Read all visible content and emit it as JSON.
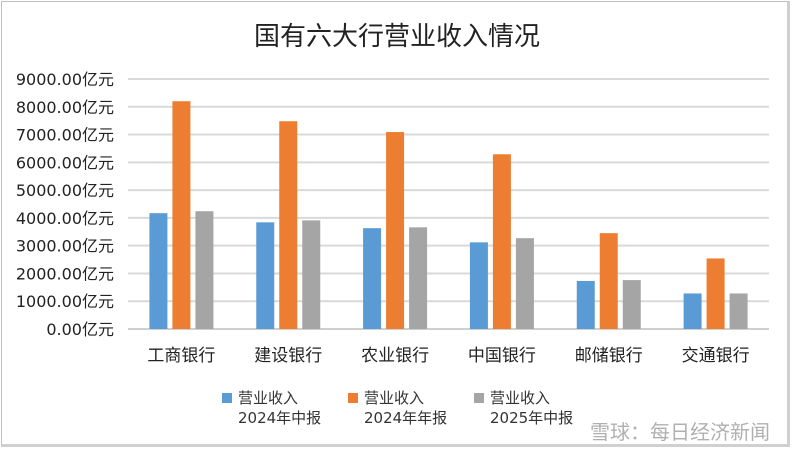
{
  "chart_data": {
    "type": "bar",
    "title": "国有六大行营业收入情况",
    "categories": [
      "工商银行",
      "建设银行",
      "农业银行",
      "中国银行",
      "邮储银行",
      "交通银行"
    ],
    "series": [
      {
        "name": "营业收入 2024年中报",
        "line1": "营业收入",
        "line2": "2024年中报",
        "color": "#5b9bd5",
        "values": [
          4170,
          3840,
          3630,
          3120,
          1730,
          1280
        ]
      },
      {
        "name": "营业收入 2024年年报",
        "line1": "营业收入",
        "line2": "2024年年报",
        "color": "#ed7d31",
        "values": [
          8200,
          7480,
          7090,
          6290,
          3450,
          2540
        ]
      },
      {
        "name": "营业收入 2025年中报",
        "line1": "营业收入",
        "line2": "2025年中报",
        "color": "#a5a5a5",
        "values": [
          4240,
          3910,
          3660,
          3270,
          1760,
          1280
        ]
      }
    ],
    "yticks": [
      "0.00亿元",
      "1000.00亿元",
      "2000.00亿元",
      "3000.00亿元",
      "4000.00亿元",
      "5000.00亿元",
      "6000.00亿元",
      "7000.00亿元",
      "8000.00亿元",
      "9000.00亿元"
    ],
    "ylim": [
      0,
      9000
    ],
    "grid": true,
    "legend": "bottom",
    "xlabel": "",
    "ylabel": ""
  },
  "watermark": "雪球：每日经济新闻"
}
